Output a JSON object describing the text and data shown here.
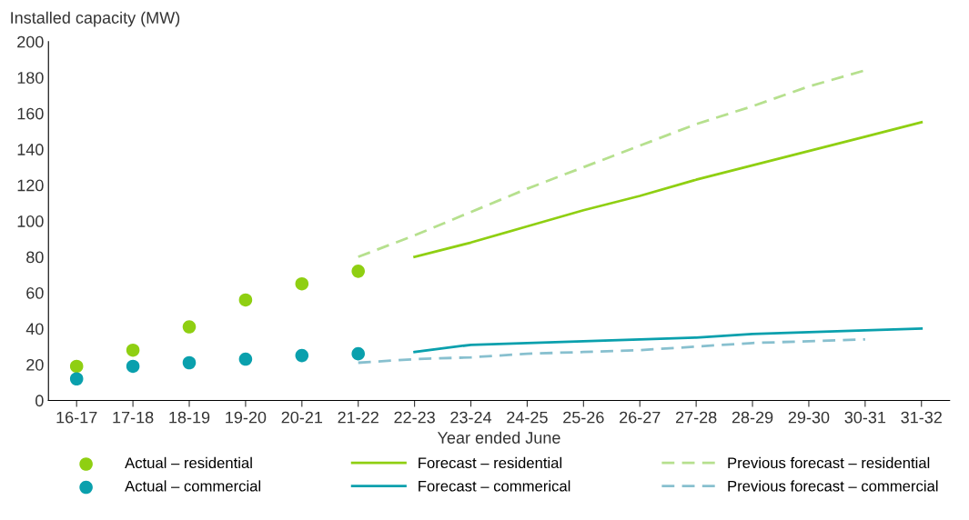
{
  "chart_data": {
    "type": "line",
    "ylabel": "Installed capacity (MW)",
    "xlabel": "Year ended June",
    "categories": [
      "16-17",
      "17-18",
      "18-19",
      "19-20",
      "20-21",
      "21-22",
      "22-23",
      "23-24",
      "24-25",
      "25-26",
      "26-27",
      "27-28",
      "28-29",
      "29-30",
      "30-31",
      "31-32"
    ],
    "ylim": [
      0,
      200
    ],
    "yticks": [
      0,
      20,
      40,
      60,
      80,
      100,
      120,
      140,
      160,
      180,
      200
    ],
    "grid": false,
    "legend": "bottom",
    "series": [
      {
        "name": "Actual – residential",
        "type": "scatter",
        "marker": "circle",
        "color": "#8fcf12",
        "values": [
          19,
          28,
          41,
          56,
          65,
          72,
          null,
          null,
          null,
          null,
          null,
          null,
          null,
          null,
          null,
          null
        ]
      },
      {
        "name": "Actual – commercial",
        "type": "scatter",
        "marker": "circle",
        "color": "#0aa0ad",
        "values": [
          12,
          19,
          21,
          23,
          25,
          26,
          null,
          null,
          null,
          null,
          null,
          null,
          null,
          null,
          null,
          null
        ]
      },
      {
        "name": "Forecast – residential",
        "line_style": "solid",
        "color": "#8fcf12",
        "values": [
          null,
          null,
          null,
          null,
          null,
          null,
          80,
          88,
          97,
          106,
          114,
          123,
          131,
          139,
          147,
          155
        ]
      },
      {
        "name": "Forecast – commerical",
        "line_style": "solid",
        "color": "#0aa0ad",
        "values": [
          null,
          null,
          null,
          null,
          null,
          null,
          27,
          31,
          32,
          33,
          34,
          35,
          37,
          38,
          39,
          40
        ]
      },
      {
        "name": "Previous forecast – residential",
        "type": "line",
        "line_style": "dashed",
        "color": "#b6e08e",
        "values": [
          null,
          null,
          null,
          null,
          null,
          80,
          92,
          105,
          118,
          130,
          142,
          154,
          164,
          175,
          184,
          null
        ]
      },
      {
        "name": "Previous forecast – commercial",
        "type": "line",
        "line_style": "dashed",
        "color": "#88c0cf",
        "values": [
          null,
          null,
          null,
          null,
          null,
          21,
          23,
          24,
          26,
          27,
          28,
          30,
          32,
          33,
          34,
          null
        ]
      }
    ]
  }
}
